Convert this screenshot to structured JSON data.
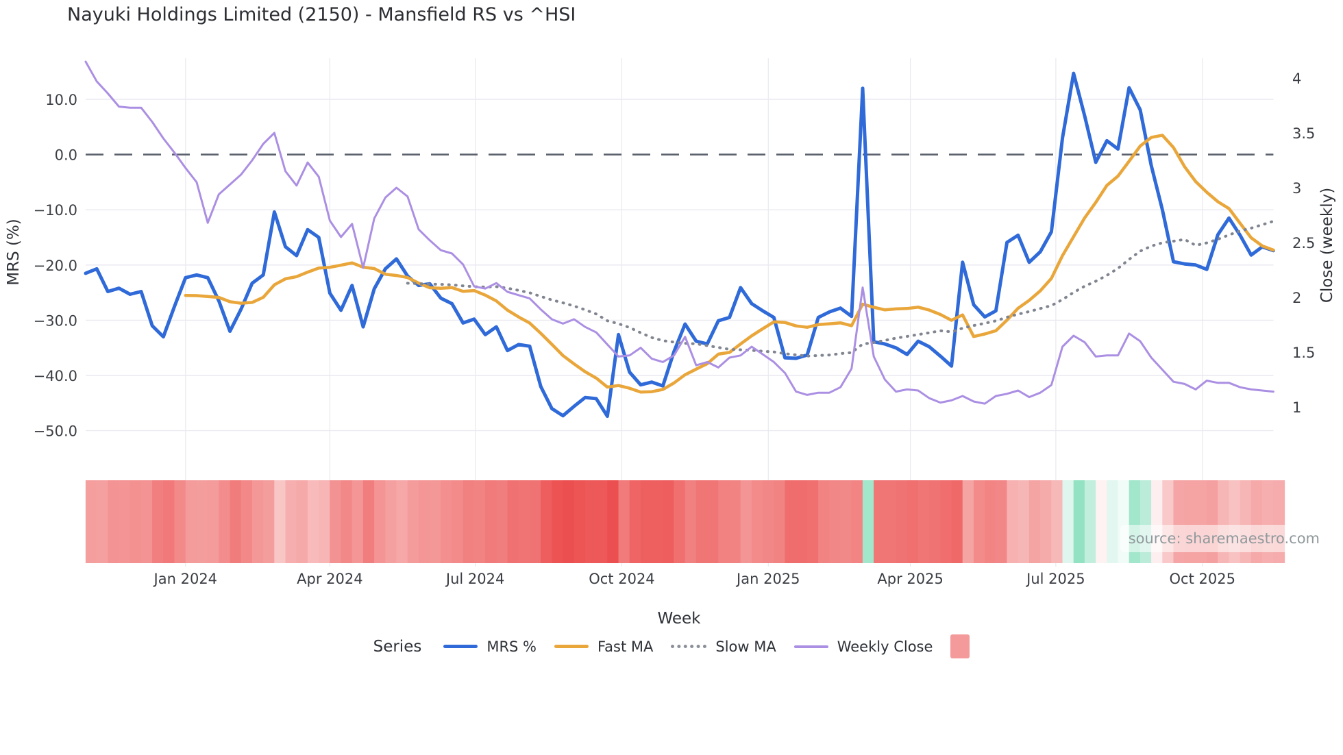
{
  "title": "Nayuki Holdings Limited (2150) - Mansfield RS vs ^HSI",
  "source_note": "source: sharemaestro.com",
  "axes": {
    "left_label": "MRS (%)",
    "right_label": "Close (weekly)",
    "x_label": "Week"
  },
  "legend": {
    "title": "Series",
    "items": [
      {
        "label": "MRS %",
        "type": "line",
        "color": "#2f6ad8"
      },
      {
        "label": "Fast MA",
        "type": "line",
        "color": "#e9a63a"
      },
      {
        "label": "Slow MA",
        "type": "dotted",
        "color": "#8a8f98"
      },
      {
        "label": "Weekly Close",
        "type": "line",
        "color": "#ab8fe3"
      },
      {
        "label": "",
        "type": "square",
        "color": "#f49a9a"
      }
    ]
  },
  "chart_data": {
    "type": "line",
    "title": "Nayuki Holdings Limited (2150) - Mansfield RS vs ^HSI",
    "xlabel": "Week",
    "ylabel_left": "MRS (%)",
    "ylabel_right": "Close (weekly)",
    "x_tick_labels": [
      "Jan 2024",
      "Apr 2024",
      "Jul 2024",
      "Oct 2024",
      "Jan 2025",
      "Apr 2025",
      "Jul 2025",
      "Oct 2025"
    ],
    "x_tick_weeks": [
      9,
      22,
      35.1,
      48.3,
      61.5,
      74.3,
      87.4,
      100.6
    ],
    "y_left_ticks": [
      10.0,
      0.0,
      -10.0,
      -20.0,
      -30.0,
      -40.0,
      -50.0
    ],
    "y_left_range_note": "zero reference line dashed at 0.0",
    "y_right_ticks": [
      4,
      3.5,
      3,
      2.5,
      2,
      1.5,
      1
    ],
    "grid": true,
    "legend_position": "bottom",
    "weeks_total": 108,
    "series": [
      {
        "name": "MRS %",
        "axis": "left",
        "color": "#2f6ad8",
        "width": 5,
        "style": "solid",
        "values": [
          -21.5,
          -20.7,
          -24.8,
          -24.2,
          -25.3,
          -24.8,
          -31.0,
          -33.0,
          -27.5,
          -22.3,
          -21.8,
          -22.3,
          -26.5,
          -32.0,
          -28.0,
          -23.3,
          -21.8,
          -10.4,
          -16.7,
          -18.3,
          -13.6,
          -15.0,
          -25.1,
          -28.2,
          -23.7,
          -31.2,
          -24.3,
          -20.7,
          -18.9,
          -22.0,
          -23.7,
          -23.4,
          -26.0,
          -27.0,
          -30.5,
          -29.8,
          -32.6,
          -31.2,
          -35.5,
          -34.4,
          -34.7,
          -42.0,
          -46.0,
          -47.3,
          -45.6,
          -44.0,
          -44.2,
          -47.4,
          -32.6,
          -39.4,
          -41.7,
          -41.2,
          -41.9,
          -35.7,
          -30.7,
          -33.8,
          -34.3,
          -30.1,
          -29.5,
          -24.1,
          -27.0,
          -28.3,
          -29.5,
          -36.8,
          -36.9,
          -36.3,
          -29.5,
          -28.5,
          -27.8,
          -29.3,
          12.0,
          -33.9,
          -34.3,
          -35.0,
          -36.2,
          -33.8,
          -34.8,
          -36.5,
          -38.3,
          -19.5,
          -27.2,
          -29.4,
          -28.3,
          -15.9,
          -14.6,
          -19.5,
          -17.6,
          -14.0,
          3.0,
          14.7,
          7.0,
          -1.4,
          2.5,
          1.0,
          12.1,
          8.1,
          -2.0,
          -10.0,
          -19.4,
          -19.8,
          -20.0,
          -20.8,
          -14.5,
          -11.5,
          -14.6,
          -18.2,
          -16.7,
          -17.4
        ]
      },
      {
        "name": "Fast MA",
        "axis": "left",
        "color": "#e9a63a",
        "width": 4.5,
        "style": "solid",
        "derived": "sma",
        "window": 10,
        "source_series": "MRS %"
      },
      {
        "name": "Slow MA",
        "axis": "left",
        "color": "#808590",
        "width": 4,
        "style": "dotted",
        "derived": "sma",
        "window": 30,
        "source_series": "MRS %"
      },
      {
        "name": "Weekly Close",
        "axis": "right",
        "color": "#ab8fe3",
        "width": 3,
        "style": "solid",
        "values": [
          4.15,
          3.97,
          3.86,
          3.74,
          3.73,
          3.73,
          3.6,
          3.45,
          3.32,
          3.18,
          3.05,
          2.68,
          2.94,
          3.03,
          3.12,
          3.25,
          3.4,
          3.5,
          3.15,
          3.02,
          3.23,
          3.1,
          2.7,
          2.55,
          2.67,
          2.27,
          2.72,
          2.91,
          3.0,
          2.92,
          2.62,
          2.52,
          2.43,
          2.4,
          2.3,
          2.1,
          2.08,
          2.13,
          2.05,
          2.02,
          1.99,
          1.89,
          1.8,
          1.76,
          1.8,
          1.73,
          1.68,
          1.57,
          1.46,
          1.47,
          1.54,
          1.44,
          1.41,
          1.47,
          1.64,
          1.38,
          1.41,
          1.36,
          1.45,
          1.47,
          1.55,
          1.48,
          1.41,
          1.31,
          1.14,
          1.11,
          1.13,
          1.13,
          1.18,
          1.35,
          2.09,
          1.46,
          1.25,
          1.14,
          1.16,
          1.15,
          1.08,
          1.04,
          1.06,
          1.1,
          1.05,
          1.03,
          1.1,
          1.12,
          1.15,
          1.09,
          1.13,
          1.2,
          1.55,
          1.65,
          1.59,
          1.46,
          1.47,
          1.47,
          1.67,
          1.6,
          1.45,
          1.34,
          1.23,
          1.21,
          1.16,
          1.24,
          1.22,
          1.22,
          1.18,
          1.16,
          1.15,
          1.14
        ]
      }
    ],
    "heatmap_strip": {
      "based_on": "MRS %",
      "neg_color": "#ec4d4d",
      "pos_color": "#8ce0c0",
      "neg_max": 48,
      "pos_max": 16
    },
    "colors": {
      "grid": "#e9e9f0",
      "zero_line": "#5c616e",
      "text": "#3b3e44"
    }
  }
}
